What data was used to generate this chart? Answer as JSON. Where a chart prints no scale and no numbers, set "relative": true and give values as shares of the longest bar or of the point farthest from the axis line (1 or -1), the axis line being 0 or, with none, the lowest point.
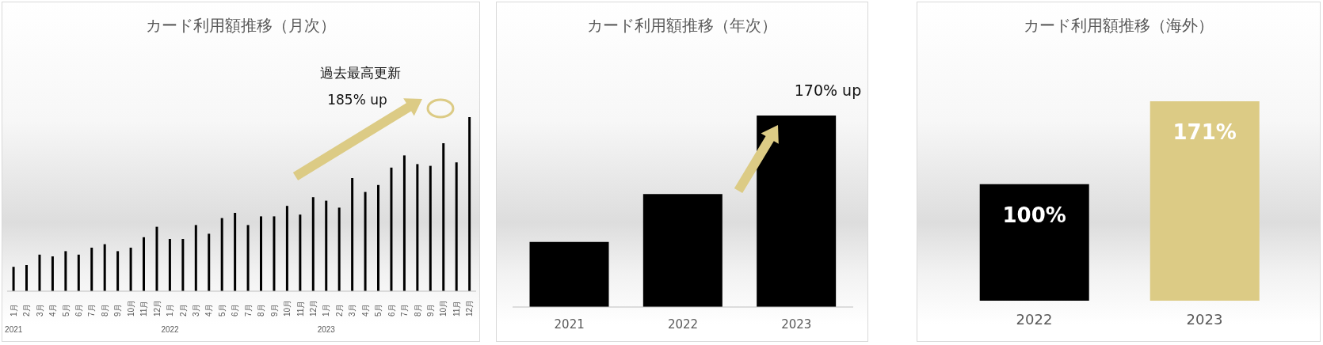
{
  "chart_data": [
    {
      "type": "bar",
      "title": "カード利用額推移（月次）",
      "categories": [
        "1月",
        "2月",
        "3月",
        "4月",
        "5月",
        "6月",
        "7月",
        "8月",
        "9月",
        "10月",
        "11月",
        "12月",
        "1月",
        "2月",
        "3月",
        "4月",
        "5月",
        "6月",
        "7月",
        "8月",
        "9月",
        "10月",
        "11月",
        "12月",
        "1月",
        "2月",
        "3月",
        "4月",
        "5月",
        "6月",
        "7月",
        "8月",
        "9月",
        "10月",
        "11月",
        "12月"
      ],
      "values": [
        0.14,
        0.15,
        0.21,
        0.2,
        0.23,
        0.21,
        0.25,
        0.27,
        0.23,
        0.25,
        0.31,
        0.37,
        0.3,
        0.3,
        0.38,
        0.33,
        0.42,
        0.45,
        0.38,
        0.43,
        0.43,
        0.49,
        0.44,
        0.54,
        0.52,
        0.48,
        0.65,
        0.57,
        0.61,
        0.71,
        0.78,
        0.73,
        0.72,
        0.85,
        0.74,
        1
      ],
      "color": "#000000",
      "relative": true,
      "annotations": [
        "過去最高更新",
        "185% up",
        "2021",
        "2022",
        "2023"
      ]
    },
    {
      "type": "bar",
      "title": "カード利用額推移（年次）",
      "categories": [
        "2021",
        "2022",
        "2023"
      ],
      "values": [
        0.34,
        0.59,
        1
      ],
      "color": "#000000",
      "relative": true,
      "annotations": [
        "170% up"
      ]
    },
    {
      "type": "bar",
      "title": "カード利用額推移（海外）",
      "categories": [
        "2022",
        "2023"
      ],
      "values": [
        100,
        171
      ],
      "colors": [
        "#000000",
        "#dccb85"
      ],
      "value_labels": [
        "100%",
        "171%"
      ]
    }
  ]
}
